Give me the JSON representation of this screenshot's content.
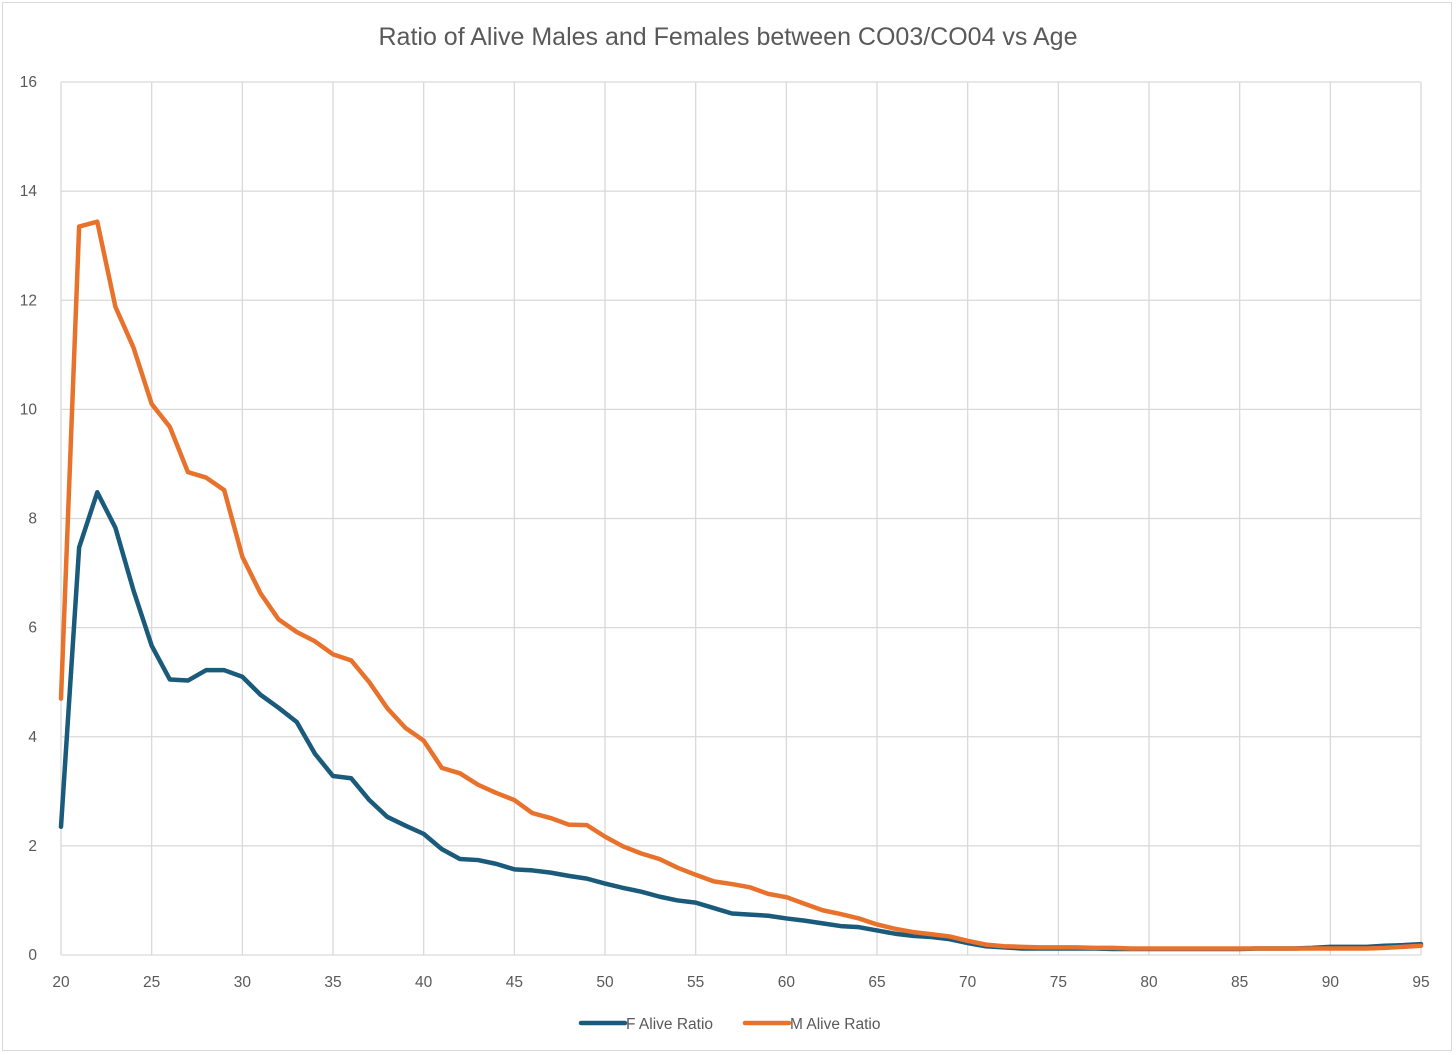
{
  "chart_data": {
    "type": "line",
    "title": "Ratio of Alive Males and Females between CO03/CO04 vs Age",
    "xlabel": "",
    "ylabel": "",
    "xlim": [
      20,
      95
    ],
    "ylim": [
      0,
      16
    ],
    "grid": true,
    "legend_position": "bottom",
    "x_ticks": [
      "20",
      "25",
      "30",
      "35",
      "40",
      "45",
      "50",
      "55",
      "60",
      "65",
      "70",
      "75",
      "80",
      "85",
      "90",
      "95"
    ],
    "y_ticks": [
      "0",
      "2",
      "4",
      "6",
      "8",
      "10",
      "12",
      "14",
      "16"
    ],
    "x": [
      20,
      21,
      22,
      23,
      24,
      25,
      26,
      27,
      28,
      29,
      30,
      31,
      32,
      33,
      34,
      35,
      36,
      37,
      38,
      39,
      40,
      41,
      42,
      43,
      44,
      45,
      46,
      47,
      48,
      49,
      50,
      51,
      52,
      53,
      54,
      55,
      56,
      57,
      58,
      59,
      60,
      61,
      62,
      63,
      64,
      65,
      66,
      67,
      68,
      69,
      70,
      71,
      72,
      73,
      74,
      75,
      76,
      77,
      78,
      79,
      80,
      81,
      82,
      83,
      84,
      85,
      86,
      87,
      88,
      89,
      90,
      91,
      92,
      93,
      94,
      95
    ],
    "series": [
      {
        "name": "F Alive Ratio",
        "color": "#1a5a7a",
        "values": [
          2.35,
          7.47,
          8.48,
          7.83,
          6.68,
          5.67,
          5.05,
          5.03,
          5.22,
          5.22,
          5.1,
          4.77,
          4.53,
          4.27,
          3.69,
          3.28,
          3.24,
          2.84,
          2.53,
          2.37,
          2.22,
          1.94,
          1.76,
          1.74,
          1.67,
          1.57,
          1.55,
          1.51,
          1.45,
          1.4,
          1.31,
          1.23,
          1.16,
          1.07,
          1.0,
          0.96,
          0.86,
          0.76,
          0.74,
          0.72,
          0.67,
          0.63,
          0.58,
          0.53,
          0.51,
          0.45,
          0.39,
          0.35,
          0.33,
          0.29,
          0.22,
          0.16,
          0.14,
          0.12,
          0.12,
          0.12,
          0.12,
          0.12,
          0.11,
          0.11,
          0.11,
          0.11,
          0.11,
          0.11,
          0.11,
          0.11,
          0.12,
          0.12,
          0.12,
          0.13,
          0.15,
          0.15,
          0.15,
          0.17,
          0.18,
          0.2
        ]
      },
      {
        "name": "M Alive Ratio",
        "color": "#e8722c",
        "values": [
          4.7,
          13.35,
          13.44,
          11.88,
          11.13,
          10.1,
          9.68,
          8.85,
          8.75,
          8.52,
          7.3,
          6.63,
          6.15,
          5.92,
          5.75,
          5.51,
          5.4,
          5.0,
          4.52,
          4.16,
          3.93,
          3.43,
          3.33,
          3.12,
          2.97,
          2.84,
          2.6,
          2.51,
          2.39,
          2.38,
          2.17,
          1.99,
          1.86,
          1.76,
          1.6,
          1.47,
          1.35,
          1.3,
          1.24,
          1.12,
          1.06,
          0.94,
          0.82,
          0.75,
          0.67,
          0.56,
          0.48,
          0.42,
          0.38,
          0.34,
          0.26,
          0.19,
          0.16,
          0.15,
          0.14,
          0.14,
          0.14,
          0.13,
          0.13,
          0.12,
          0.12,
          0.12,
          0.12,
          0.12,
          0.12,
          0.12,
          0.12,
          0.12,
          0.12,
          0.12,
          0.12,
          0.12,
          0.12,
          0.13,
          0.15,
          0.17
        ]
      }
    ]
  }
}
